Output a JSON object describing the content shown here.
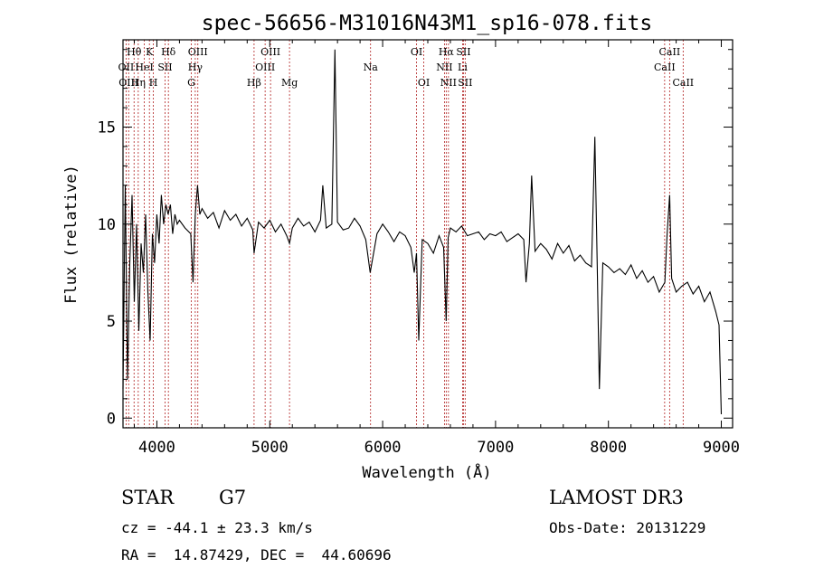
{
  "chart_data": {
    "type": "line",
    "title": "spec-56656-M31016N43M1_sp16-078.fits",
    "xlabel": "Wavelength (Å)",
    "ylabel": "Flux (relative)",
    "xlim": [
      3700,
      9100
    ],
    "ylim": [
      -0.5,
      19.5
    ],
    "x_ticks": [
      4000,
      5000,
      6000,
      7000,
      8000,
      9000
    ],
    "y_ticks": [
      0,
      5,
      10,
      15
    ],
    "grid": false,
    "series": [
      {
        "name": "flux",
        "x": [
          3700,
          3720,
          3740,
          3760,
          3780,
          3800,
          3820,
          3840,
          3860,
          3880,
          3900,
          3920,
          3940,
          3960,
          3980,
          4000,
          4020,
          4040,
          4060,
          4080,
          4100,
          4120,
          4140,
          4160,
          4180,
          4200,
          4250,
          4300,
          4320,
          4340,
          4360,
          4380,
          4400,
          4450,
          4500,
          4550,
          4600,
          4650,
          4700,
          4750,
          4800,
          4850,
          4861,
          4900,
          4950,
          5000,
          5050,
          5100,
          5150,
          5175,
          5200,
          5250,
          5300,
          5350,
          5400,
          5450,
          5470,
          5500,
          5550,
          5577,
          5600,
          5650,
          5700,
          5750,
          5800,
          5850,
          5890,
          5950,
          6000,
          6050,
          6100,
          6150,
          6200,
          6250,
          6280,
          6300,
          6320,
          6350,
          6400,
          6450,
          6500,
          6540,
          6563,
          6580,
          6600,
          6650,
          6700,
          6750,
          6800,
          6850,
          6900,
          6950,
          7000,
          7050,
          7100,
          7150,
          7200,
          7250,
          7270,
          7300,
          7320,
          7350,
          7400,
          7450,
          7500,
          7550,
          7600,
          7650,
          7700,
          7750,
          7800,
          7850,
          7880,
          7900,
          7920,
          7950,
          8000,
          8050,
          8100,
          8150,
          8200,
          8250,
          8300,
          8350,
          8400,
          8450,
          8500,
          8520,
          8542,
          8560,
          8600,
          8650,
          8700,
          8750,
          8800,
          8850,
          8900,
          8950,
          8980,
          9000
        ],
        "y": [
          1.5,
          12.0,
          2.0,
          8.0,
          11.5,
          6.0,
          10.0,
          4.5,
          9.0,
          7.5,
          10.5,
          6.5,
          4.0,
          9.5,
          8.0,
          10.5,
          9.0,
          11.5,
          10.0,
          11.0,
          10.5,
          11.0,
          9.5,
          10.5,
          10.0,
          10.2,
          9.8,
          9.5,
          7.0,
          10.5,
          12.0,
          10.5,
          10.8,
          10.3,
          10.6,
          9.8,
          10.7,
          10.2,
          10.5,
          9.9,
          10.3,
          9.7,
          8.5,
          10.1,
          9.8,
          10.2,
          9.6,
          10.0,
          9.4,
          9.0,
          9.8,
          10.3,
          9.9,
          10.1,
          9.6,
          10.2,
          12.0,
          9.8,
          10.0,
          19.0,
          10.1,
          9.7,
          9.8,
          10.3,
          9.9,
          9.2,
          7.5,
          9.5,
          10.0,
          9.6,
          9.1,
          9.6,
          9.4,
          8.8,
          7.5,
          8.5,
          4.0,
          9.2,
          9.0,
          8.5,
          9.4,
          8.8,
          5.0,
          9.3,
          9.8,
          9.6,
          9.9,
          9.4,
          9.5,
          9.6,
          9.2,
          9.5,
          9.4,
          9.6,
          9.1,
          9.3,
          9.5,
          9.2,
          7.0,
          9.0,
          12.5,
          8.6,
          9.0,
          8.7,
          8.2,
          9.0,
          8.5,
          8.9,
          8.1,
          8.4,
          8.0,
          7.8,
          14.5,
          8.2,
          1.5,
          8.0,
          7.8,
          7.5,
          7.7,
          7.4,
          7.9,
          7.2,
          7.6,
          7.0,
          7.3,
          6.5,
          7.0,
          9.5,
          11.5,
          7.2,
          6.5,
          6.8,
          7.0,
          6.4,
          6.8,
          6.0,
          6.5,
          5.5,
          4.8,
          0.2
        ]
      }
    ],
    "emission_lines": [
      {
        "label": "OII",
        "wavelength": 3727,
        "row": 2
      },
      {
        "label": "Hθ",
        "wavelength": 3798,
        "row": 1
      },
      {
        "label": "OIII",
        "wavelength": 3750,
        "row": 3
      },
      {
        "label": "Hη",
        "wavelength": 3835,
        "row": 3
      },
      {
        "label": "HeI",
        "wavelength": 3889,
        "row": 2
      },
      {
        "label": "K",
        "wavelength": 3934,
        "row": 1
      },
      {
        "label": "H",
        "wavelength": 3969,
        "row": 3
      },
      {
        "label": "SII",
        "wavelength": 4072,
        "row": 2
      },
      {
        "label": "Hδ",
        "wavelength": 4102,
        "row": 1
      },
      {
        "label": "OIII",
        "wavelength": 4363,
        "row": 1
      },
      {
        "label": "Hγ",
        "wavelength": 4340,
        "row": 2
      },
      {
        "label": "G",
        "wavelength": 4305,
        "row": 3
      },
      {
        "label": "Hβ",
        "wavelength": 4861,
        "row": 3
      },
      {
        "label": "OIII",
        "wavelength": 4959,
        "row": 2
      },
      {
        "label": "OIII",
        "wavelength": 5007,
        "row": 1
      },
      {
        "label": "Mg",
        "wavelength": 5175,
        "row": 3
      },
      {
        "label": "Na",
        "wavelength": 5893,
        "row": 2
      },
      {
        "label": "OI",
        "wavelength": 6300,
        "row": 1
      },
      {
        "label": "OI",
        "wavelength": 6364,
        "row": 3
      },
      {
        "label": "NII",
        "wavelength": 6548,
        "row": 2
      },
      {
        "label": "Hα",
        "wavelength": 6563,
        "row": 1
      },
      {
        "label": "NII",
        "wavelength": 6583,
        "row": 3
      },
      {
        "label": "SII",
        "wavelength": 6716,
        "row": 1
      },
      {
        "label": "Li",
        "wavelength": 6708,
        "row": 2
      },
      {
        "label": "SII",
        "wavelength": 6731,
        "row": 3
      },
      {
        "label": "CaII",
        "wavelength": 8498,
        "row": 2
      },
      {
        "label": "CaII",
        "wavelength": 8542,
        "row": 1
      },
      {
        "label": "CaII",
        "wavelength": 8662,
        "row": 3
      }
    ]
  },
  "info": {
    "object_class": "STAR",
    "subclass": "G7",
    "survey": "LAMOST DR3",
    "cz": "cz = -44.1 ± 23.3 km/s",
    "obs_date": "Obs-Date: 20131229",
    "coords": "RA =  14.87429, DEC =  44.60696"
  }
}
